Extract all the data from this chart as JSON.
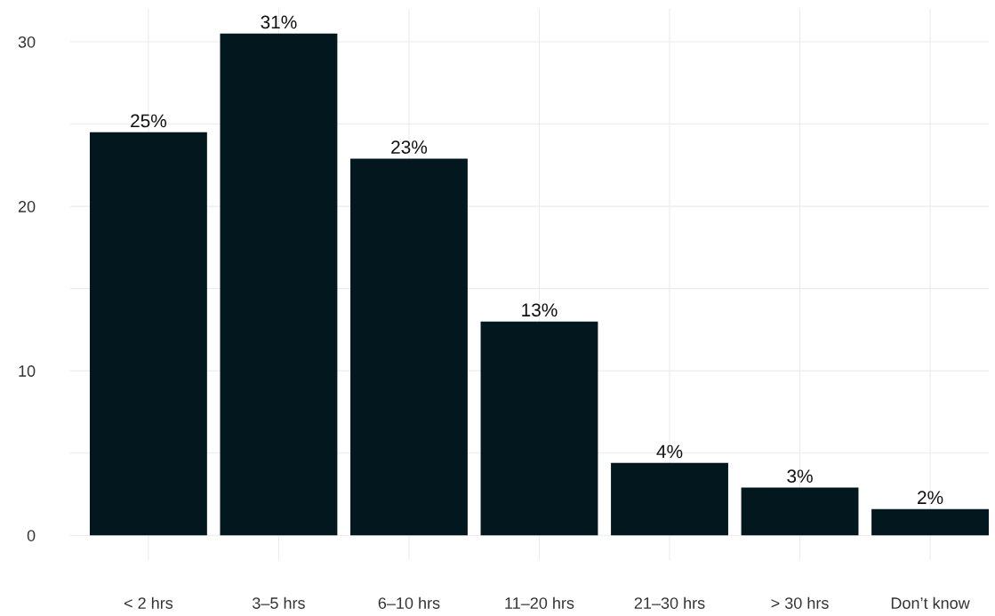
{
  "chart_data": {
    "type": "bar",
    "categories": [
      "< 2 hrs",
      "3–5 hrs",
      "6–10 hrs",
      "11–20 hrs",
      "21–30 hrs",
      "> 30 hrs",
      "Don’t know"
    ],
    "values": [
      24.5,
      30.5,
      22.9,
      13.0,
      4.4,
      2.9,
      1.6
    ],
    "value_labels": [
      "25%",
      "31%",
      "23%",
      "13%",
      "4%",
      "3%",
      "2%"
    ],
    "color": "#03171e",
    "ylim": [
      -1.5,
      32
    ],
    "yticks": [
      0,
      {
        "value": 5,
        "label": null
      },
      10,
      {
        "value": 15,
        "label": null
      },
      20,
      {
        "value": 25,
        "label": null
      },
      30
    ],
    "grid": true,
    "legend": false
  }
}
